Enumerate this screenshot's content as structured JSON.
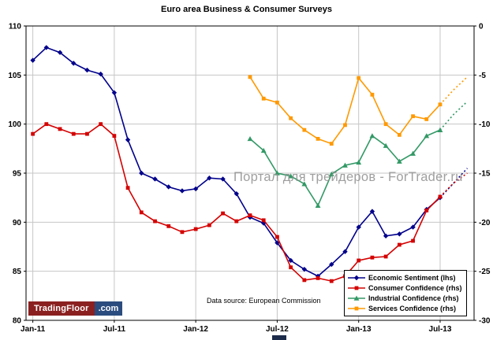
{
  "title": "Euro area Business & Consumer Surveys",
  "watermark": "Портал для трейдеров - ForTrader.ru",
  "data_source": "Data source: European Commission",
  "logo": {
    "brand": "TradingFloor",
    "suffix": ".com"
  },
  "chart_data": {
    "type": "line",
    "x": [
      "Jan-11",
      "Feb-11",
      "Mar-11",
      "Apr-11",
      "May-11",
      "Jun-11",
      "Jul-11",
      "Aug-11",
      "Sep-11",
      "Oct-11",
      "Nov-11",
      "Dec-11",
      "Jan-12",
      "Feb-12",
      "Mar-12",
      "Apr-12",
      "May-12",
      "Jun-12",
      "Jul-12",
      "Aug-12",
      "Sep-12",
      "Oct-12",
      "Nov-12",
      "Dec-12",
      "Jan-13",
      "Feb-13",
      "Mar-13",
      "Apr-13",
      "May-13",
      "Jun-13",
      "Jul-13",
      "Aug-13",
      "Sep-13"
    ],
    "x_tick_labels": [
      "Jan-11",
      "Jul-11",
      "Jan-12",
      "Jul-12",
      "Jan-13",
      "Jul-13"
    ],
    "left_axis": {
      "label": "lhs",
      "min": 80,
      "max": 110,
      "ticks": [
        110,
        105,
        100,
        95,
        90,
        85,
        80
      ]
    },
    "right_axis": {
      "label": "rhs",
      "min": -30,
      "max": 0,
      "ticks": [
        0,
        -5,
        -10,
        -15,
        -20,
        -25,
        -30
      ]
    },
    "grid": true,
    "legend_position": "bottom-right-inside",
    "forecast_from": "Aug-13",
    "series": [
      {
        "name": "Economic Sentiment (lhs)",
        "axis": "lhs",
        "color": "#00008B",
        "marker": "diamond",
        "values": [
          106.5,
          107.8,
          107.3,
          106.2,
          105.5,
          105.1,
          103.2,
          98.4,
          95.0,
          94.4,
          93.6,
          93.2,
          93.4,
          94.5,
          94.4,
          92.9,
          90.5,
          89.9,
          87.9,
          86.1,
          85.2,
          84.5,
          85.7,
          87.0,
          89.5,
          91.1,
          88.6,
          88.8,
          89.5,
          91.3,
          92.5,
          94.0,
          95.5
        ]
      },
      {
        "name": "Consumer Confidence (rhs)",
        "axis": "rhs",
        "color": "#D40000",
        "marker": "square",
        "values": [
          -11.0,
          -10.0,
          -10.5,
          -11.0,
          -11.0,
          -10.0,
          -11.2,
          -16.5,
          -19.0,
          -19.9,
          -20.4,
          -21.0,
          -20.7,
          -20.3,
          -19.1,
          -19.9,
          -19.3,
          -19.8,
          -21.5,
          -24.6,
          -25.9,
          -25.7,
          -26.0,
          -25.5,
          -23.9,
          -23.6,
          -23.5,
          -22.3,
          -21.9,
          -18.8,
          -17.4,
          -16.0,
          -15.0
        ]
      },
      {
        "name": "Industrial Confidence (rhs)",
        "axis": "rhs",
        "color": "#339966",
        "marker": "triangle",
        "values": [
          null,
          null,
          null,
          null,
          null,
          null,
          null,
          null,
          null,
          null,
          null,
          null,
          null,
          null,
          null,
          null,
          -11.5,
          -12.7,
          -15.0,
          -15.3,
          -16.1,
          -18.3,
          -15.1,
          -14.2,
          -13.9,
          -11.2,
          -12.2,
          -13.8,
          -13.0,
          -11.2,
          -10.6,
          -9.0,
          -7.7
        ]
      },
      {
        "name": "Services Confidence (rhs)",
        "axis": "rhs",
        "color": "#FF9900",
        "marker": "square",
        "values": [
          null,
          null,
          null,
          null,
          null,
          null,
          null,
          null,
          null,
          null,
          null,
          null,
          null,
          null,
          null,
          null,
          -5.2,
          -7.4,
          -7.8,
          -9.4,
          -10.6,
          -11.5,
          -12.0,
          -10.1,
          -5.3,
          -7.0,
          -10.0,
          -11.1,
          -9.2,
          -9.5,
          -8.0,
          -6.5,
          -5.2
        ]
      }
    ]
  }
}
